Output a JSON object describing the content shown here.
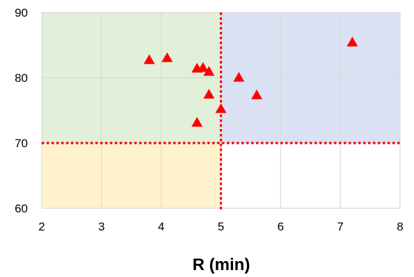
{
  "chart_data": {
    "type": "scatter",
    "title": "",
    "xlabel": "R (min)",
    "ylabel": "",
    "xlim": [
      2,
      8
    ],
    "ylim": [
      60,
      90
    ],
    "x_ticks": [
      "2",
      "3",
      "4",
      "5",
      "6",
      "7",
      "8"
    ],
    "y_ticks": [
      "60",
      "70",
      "80",
      "90"
    ],
    "grid": true,
    "marker": "triangle",
    "marker_color": "#ff0000",
    "thresholds": {
      "x": 5,
      "y": 70,
      "style": "dotted",
      "color": "#ff0000"
    },
    "regions": [
      {
        "x": [
          2,
          5
        ],
        "y": [
          70,
          90
        ],
        "color": "#e2efd9"
      },
      {
        "x": [
          5,
          8
        ],
        "y": [
          70,
          90
        ],
        "color": "#d9e1f2"
      },
      {
        "x": [
          2,
          5
        ],
        "y": [
          60,
          70
        ],
        "color": "#fff2cc"
      },
      {
        "x": [
          5,
          8
        ],
        "y": [
          60,
          70
        ],
        "color": "#ffffff"
      }
    ],
    "series": [
      {
        "points": [
          {
            "x": 3.8,
            "y": 82.7
          },
          {
            "x": 4.1,
            "y": 83.0
          },
          {
            "x": 4.6,
            "y": 81.4
          },
          {
            "x": 4.7,
            "y": 81.5
          },
          {
            "x": 4.8,
            "y": 80.9
          },
          {
            "x": 4.8,
            "y": 77.4
          },
          {
            "x": 4.6,
            "y": 73.1
          },
          {
            "x": 5.0,
            "y": 75.2
          },
          {
            "x": 5.3,
            "y": 80.0
          },
          {
            "x": 5.6,
            "y": 77.3
          },
          {
            "x": 7.2,
            "y": 85.4
          }
        ]
      }
    ]
  }
}
